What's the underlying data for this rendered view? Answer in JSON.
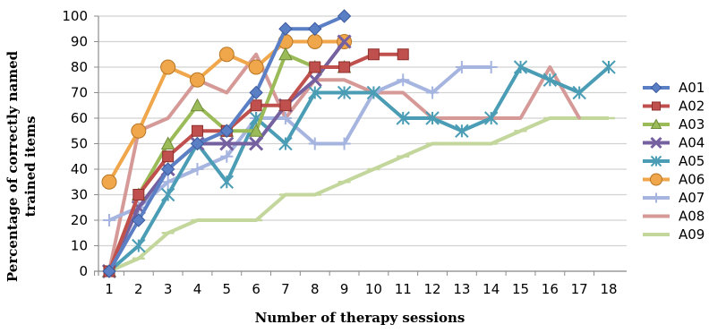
{
  "chart_data": {
    "type": "line",
    "xlabel": "Number of therapy sessions",
    "ylabel_lines": [
      "Percentage of correctly named",
      "trained items"
    ],
    "x": [
      1,
      2,
      3,
      4,
      5,
      6,
      7,
      8,
      9,
      10,
      11,
      12,
      13,
      14,
      15,
      16,
      17,
      18
    ],
    "ylim": [
      0,
      100
    ],
    "yticks": [
      0,
      10,
      20,
      30,
      40,
      50,
      60,
      70,
      80,
      90,
      100
    ],
    "grid": true,
    "legend_position": "right",
    "series": [
      {
        "name": "A01",
        "color": "#5b7fc4",
        "marker": "diamond",
        "values": [
          0,
          20,
          40,
          50,
          55,
          70,
          95,
          95,
          100,
          null,
          null,
          null,
          null,
          null,
          null,
          null,
          null,
          null
        ]
      },
      {
        "name": "A02",
        "color": "#c0504d",
        "marker": "square",
        "values": [
          0,
          30,
          45,
          55,
          55,
          65,
          65,
          80,
          80,
          85,
          85,
          null,
          null,
          null,
          null,
          null,
          null,
          null
        ]
      },
      {
        "name": "A03",
        "color": "#9bbb59",
        "marker": "triangle",
        "values": [
          0,
          30,
          50,
          65,
          55,
          55,
          85,
          80,
          80,
          null,
          null,
          null,
          null,
          null,
          null,
          null,
          null,
          null
        ]
      },
      {
        "name": "A04",
        "color": "#7560a0",
        "marker": "x",
        "values": [
          0,
          25,
          40,
          50,
          50,
          50,
          65,
          75,
          90,
          null,
          null,
          null,
          null,
          null,
          null,
          null,
          null,
          null
        ]
      },
      {
        "name": "A05",
        "color": "#4b9db5",
        "marker": "star",
        "values": [
          0,
          10,
          30,
          50,
          35,
          60,
          50,
          70,
          70,
          70,
          60,
          60,
          55,
          60,
          80,
          75,
          70,
          80
        ]
      },
      {
        "name": "A06",
        "color": "#f0a64a",
        "marker": "circle",
        "values": [
          35,
          55,
          80,
          75,
          85,
          80,
          90,
          90,
          90,
          null,
          null,
          null,
          null,
          null,
          null,
          null,
          null,
          null
        ]
      },
      {
        "name": "A07",
        "color": "#a6b4e0",
        "marker": "plus",
        "values": [
          20,
          25,
          35,
          40,
          45,
          60,
          60,
          50,
          50,
          70,
          75,
          70,
          80,
          80,
          null,
          null,
          null,
          null
        ]
      },
      {
        "name": "A08",
        "color": "#d59a97",
        "marker": "none",
        "values": [
          0,
          55,
          60,
          75,
          70,
          85,
          60,
          75,
          75,
          70,
          70,
          60,
          60,
          60,
          60,
          80,
          60,
          null
        ]
      },
      {
        "name": "A09",
        "color": "#c3d69b",
        "marker": "dash",
        "values": [
          0,
          5,
          15,
          20,
          20,
          20,
          30,
          30,
          35,
          40,
          45,
          50,
          50,
          50,
          55,
          60,
          60,
          60
        ]
      }
    ]
  }
}
